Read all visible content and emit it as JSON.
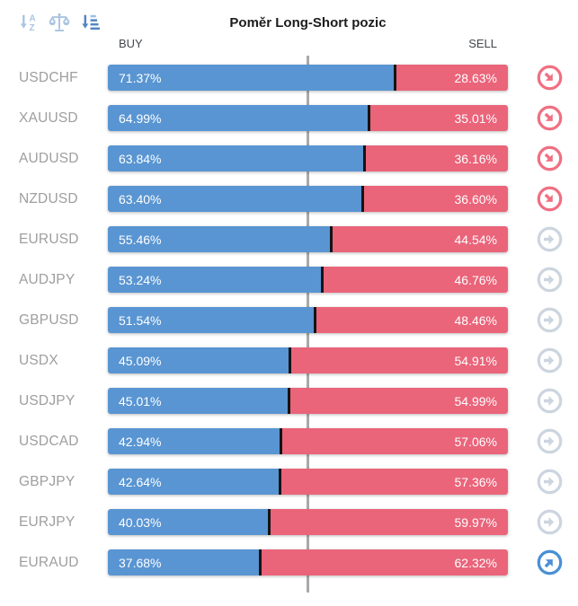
{
  "header": {
    "title": "Poměr Long-Short pozic",
    "buy_label": "BUY",
    "sell_label": "SELL"
  },
  "toolbar": {
    "icons": [
      "sort-alphabetical-icon",
      "balance-scale-icon",
      "sort-by-amount-icon"
    ]
  },
  "colors": {
    "buy_bar": "#5995d2",
    "sell_bar": "#ea647a",
    "bar_divider": "#141414",
    "pair_label": "#9e9e9e",
    "center_line": "#a9a9a9",
    "trend_down": "#ef7082",
    "trend_neutral": "#ccd5df",
    "trend_up": "#4a8fd5"
  },
  "chart_data": {
    "type": "bar",
    "orientation": "horizontal-stacked",
    "title": "Poměr Long-Short pozic",
    "xlim": [
      0,
      100
    ],
    "center_line": 50,
    "grid": false,
    "legend_position": "top (BUY left, SELL right)",
    "categories": [
      "USDCHF",
      "XAUUSD",
      "AUDUSD",
      "NZDUSD",
      "EURUSD",
      "AUDJPY",
      "GBPUSD",
      "USDX",
      "USDJPY",
      "USDCAD",
      "GBPJPY",
      "EURJPY",
      "EURAUD"
    ],
    "series": [
      {
        "name": "BUY",
        "color": "#5995d2",
        "values": [
          71.37,
          64.99,
          63.84,
          63.4,
          55.46,
          53.24,
          51.54,
          45.09,
          45.01,
          42.94,
          42.64,
          40.03,
          37.68
        ]
      },
      {
        "name": "SELL",
        "color": "#ea647a",
        "values": [
          28.63,
          35.01,
          36.16,
          36.6,
          44.54,
          46.76,
          48.46,
          54.91,
          54.99,
          57.06,
          57.36,
          59.97,
          62.32
        ]
      }
    ],
    "trend_icons": [
      "down",
      "down",
      "down",
      "down",
      "neutral",
      "neutral",
      "neutral",
      "neutral",
      "neutral",
      "neutral",
      "neutral",
      "neutral",
      "up"
    ]
  }
}
